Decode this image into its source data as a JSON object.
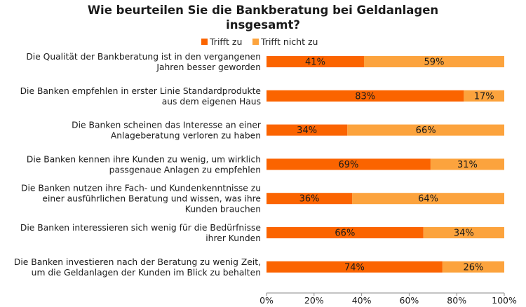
{
  "title_lines": [
    "Wie beurteilen Sie die Bankberatung bei Geldanlagen",
    "insgesamt?"
  ],
  "legend": [
    {
      "label": "Trifft zu",
      "color": "#fb6400"
    },
    {
      "label": "Trifft nicht zu",
      "color": "#fca33d"
    }
  ],
  "chart_data": {
    "type": "bar",
    "orientation": "horizontal",
    "stacked": "100%",
    "title": "Wie beurteilen Sie die Bankberatung bei Geldanlagen insgesamt?",
    "categories": [
      [
        "Die Qualität der Bankberatung ist in den vergangenen",
        "Jahren besser geworden"
      ],
      [
        "Die Banken empfehlen in erster Linie Standardprodukte",
        "aus dem eigenen Haus"
      ],
      [
        "Die Banken scheinen das Interesse an einer",
        "Anlageberatung verloren zu haben"
      ],
      [
        "Die Banken kennen ihre Kunden zu wenig, um wirklich",
        "passgenaue Anlagen zu empfehlen"
      ],
      [
        "Die Banken nutzen ihre Fach- und Kundenkenntnisse zu",
        "einer ausführlichen Beratung und wissen, was ihre",
        "Kunden brauchen"
      ],
      [
        "Die Banken interessieren sich wenig für die Bedürfnisse",
        "ihrer Kunden"
      ],
      [
        "Die Banken investieren nach der Beratung zu wenig Zeit,",
        "um die Geldanlagen der Kunden im Blick zu behalten"
      ]
    ],
    "series": [
      {
        "name": "Trifft zu",
        "color": "#fb6400",
        "values": [
          41,
          83,
          34,
          69,
          36,
          66,
          74
        ],
        "labels": [
          "41%",
          "83%",
          "34%",
          "69%",
          "36%",
          "66%",
          "74%"
        ]
      },
      {
        "name": "Trifft nicht zu",
        "color": "#fca33d",
        "values": [
          59,
          17,
          66,
          31,
          64,
          34,
          26
        ],
        "labels": [
          "59%",
          "17%",
          "66%",
          "31%",
          "64%",
          "34%",
          "26%"
        ]
      }
    ],
    "xlim": [
      0,
      100
    ],
    "xticks": [
      0,
      20,
      40,
      60,
      80,
      100
    ],
    "xtick_labels": [
      "0%",
      "20%",
      "40%",
      "60%",
      "80%",
      "100%"
    ],
    "grid": false,
    "legend_position": "top-center"
  }
}
